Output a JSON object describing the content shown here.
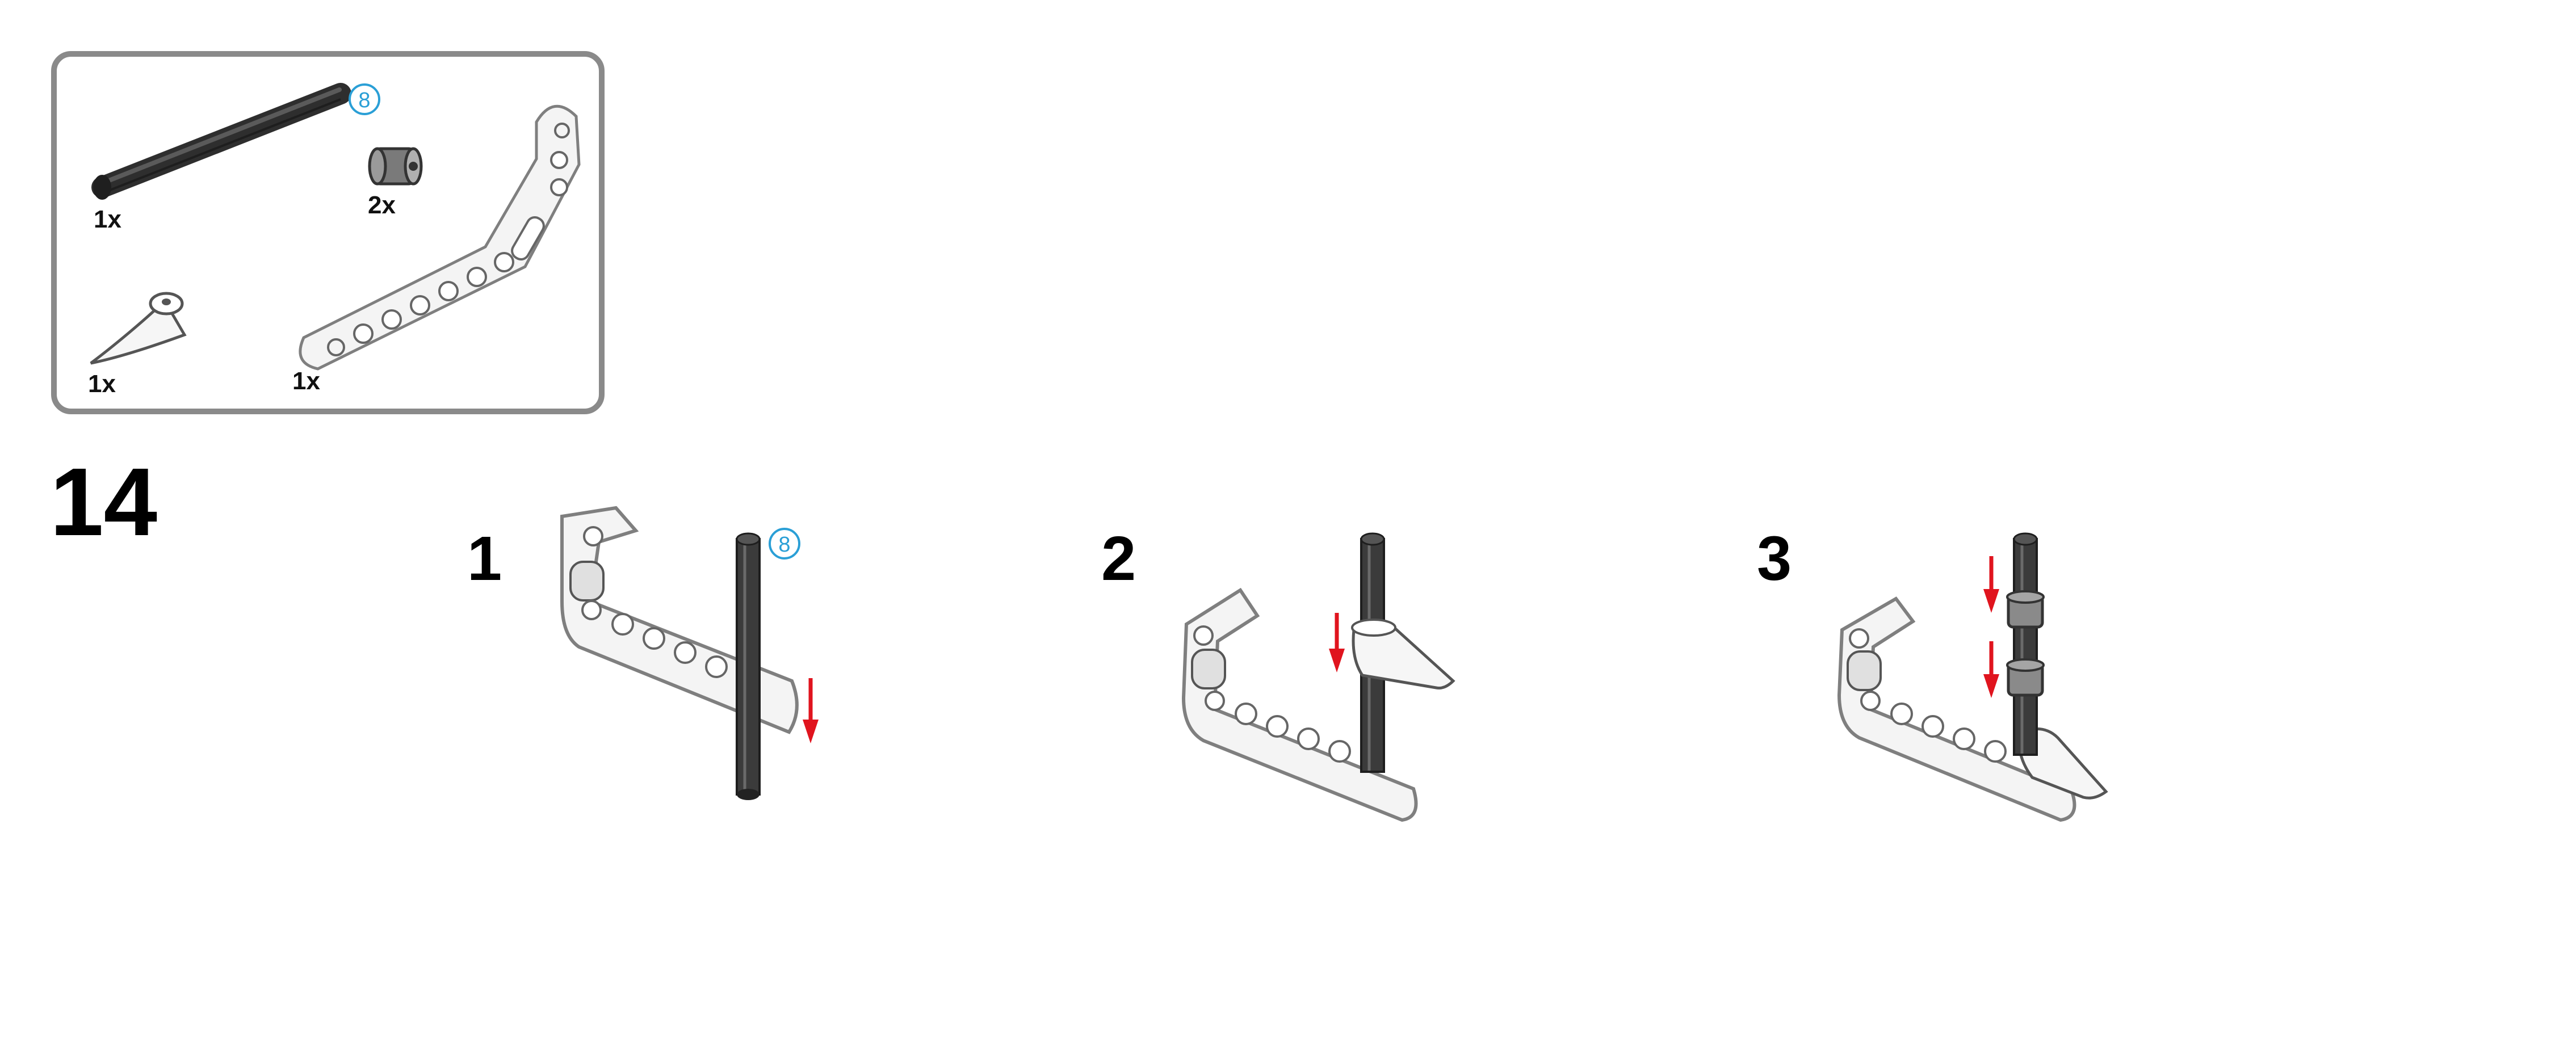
{
  "parts_list": {
    "items": [
      {
        "name": "axle",
        "quantity": "1x",
        "length_badge": "8"
      },
      {
        "name": "bushing",
        "quantity": "2x"
      },
      {
        "name": "tooth-connector",
        "quantity": "1x"
      },
      {
        "name": "bent-beam",
        "quantity": "1x"
      }
    ]
  },
  "step": {
    "number": "14",
    "substeps": [
      {
        "label": "1",
        "badge": "8"
      },
      {
        "label": "2"
      },
      {
        "label": "3"
      }
    ]
  },
  "colors": {
    "panel_border": "#8a8a8a",
    "axle": "#3b3b3b",
    "badge": "#2a9fd6",
    "arrow": "#e0141e",
    "beam_fill": "#f4f4f4",
    "beam_stroke": "#7f7f7f"
  },
  "icons": [
    "axle-icon",
    "bushing-icon",
    "tooth-icon",
    "bent-beam-icon",
    "arrow-down-icon"
  ]
}
